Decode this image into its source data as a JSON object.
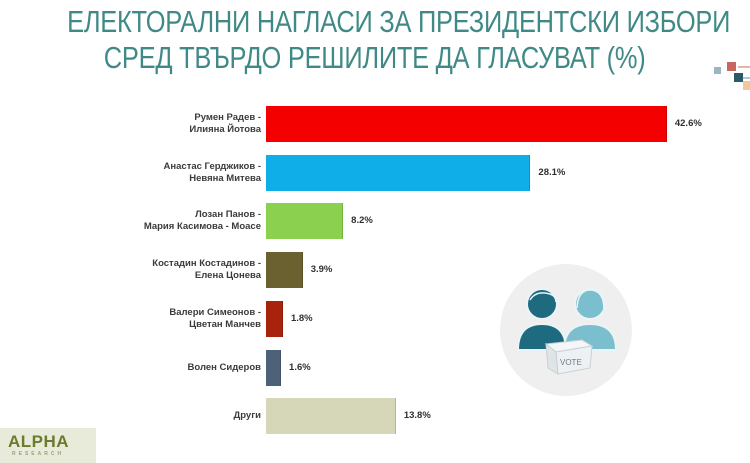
{
  "title": {
    "line1": "ЕЛЕКТОРАЛНИ НАГЛАСИ ЗА ПРЕЗИДЕНТСКИ ИЗБОРИ",
    "line2": "СРЕД ТВЪРДО РЕШИЛИТЕ ДА ГЛАСУВАТ (%)"
  },
  "rows": [
    {
      "label1": "Румен Радев -",
      "label2": "Илияна Йотова",
      "value_label": "42.6%",
      "color": "#f40000"
    },
    {
      "label1": "Анастас Герджиков -",
      "label2": "Невяна Митева",
      "value_label": "28.1%",
      "color": "#10aee8"
    },
    {
      "label1": "Лозан Панов -",
      "label2": "Мария Касимова - Моасе",
      "value_label": "8.2%",
      "color": "#8cd050"
    },
    {
      "label1": "Костадин Костадинов -",
      "label2": "Елена Цонева",
      "value_label": "3.9%",
      "color": "#6b6030"
    },
    {
      "label1": "Валери Симеонов -",
      "label2": "Цветан Манчев",
      "value_label": "1.8%",
      "color": "#a8230c"
    },
    {
      "label1": "Волен Сидеров",
      "label2": "",
      "value_label": "1.6%",
      "color": "#4d6278"
    },
    {
      "label1": "Други",
      "label2": "",
      "value_label": "13.8%",
      "color": "#d6d6b8"
    }
  ],
  "illustration": {
    "ballot_text": "VOTE",
    "icon": "voters-ballot-icon"
  },
  "logo": {
    "name": "ALPHA",
    "sub": "RESEARCH"
  },
  "colors": {
    "title": "#3f8a86",
    "man": "#1e6b80",
    "woman": "#7bbfcf"
  },
  "chart_data": {
    "type": "bar",
    "orientation": "horizontal",
    "title": "ЕЛЕКТОРАЛНИ НАГЛАСИ ЗА ПРЕЗИДЕНТСКИ ИЗБОРИ СРЕД ТВЪРДО РЕШИЛИТЕ ДА ГЛАСУВАТ (%)",
    "categories": [
      "Румен Радев - Илияна Йотова",
      "Анастас Герджиков - Невяна Митева",
      "Лозан Панов - Мария Касимова - Моасе",
      "Костадин Костадинов - Елена Цонева",
      "Валери Симеонов - Цветан Манчев",
      "Волен Сидеров",
      "Други"
    ],
    "values": [
      42.6,
      28.1,
      8.2,
      3.9,
      1.8,
      1.6,
      13.8
    ],
    "colors": [
      "#f40000",
      "#10aee8",
      "#8cd050",
      "#6b6030",
      "#a8230c",
      "#4d6278",
      "#d6d6b8"
    ],
    "xlabel": "",
    "ylabel": "",
    "unit": "%",
    "data_labels": true,
    "grid": false,
    "legend": null
  }
}
